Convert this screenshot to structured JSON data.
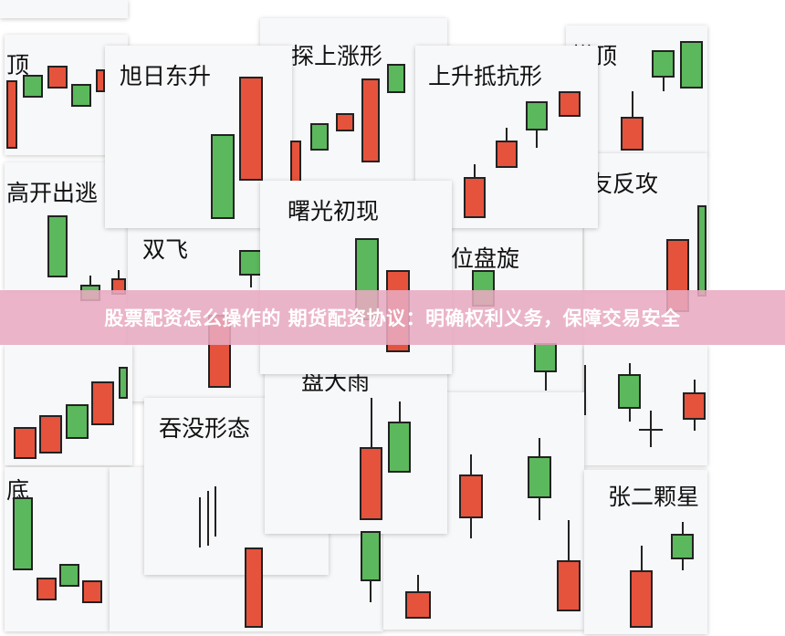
{
  "banner": {
    "text": "股票配资怎么操作的 期货配资协议：明确权利义务，保障交易安全"
  },
  "cards": {
    "ding": "顶",
    "gaokai": "高开出逃",
    "shuangfei": "双飞",
    "dading": "搭顶",
    "youfangong": "友反攻",
    "weipanxuan": "位盘旋",
    "di": "底",
    "tunmo": "吞没形态",
    "pandayu": "盘大雨",
    "zhangerkexing": "张二颗星",
    "xuri": "旭日东升",
    "tanshang": "探上涨形",
    "shangsheng": "上升抵抗形",
    "shuguang": "曙光初现"
  },
  "colors": {
    "up": "#e5533d",
    "down": "#5cb85c",
    "banner": "#e8aac0"
  }
}
